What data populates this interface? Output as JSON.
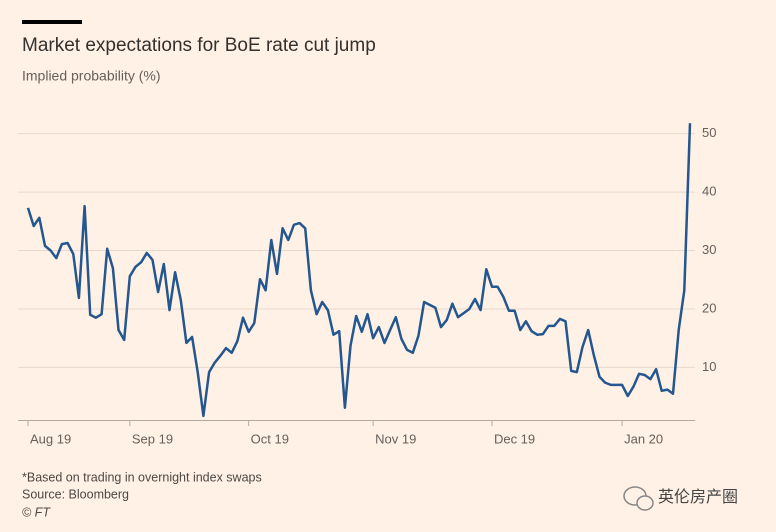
{
  "chart_data": {
    "type": "line",
    "title": "Market expectations for BoE rate cut jump",
    "subtitle": "Implied probability (%)",
    "notes": [
      "*Based on trading in overnight index swaps",
      "Source: Bloomberg",
      "© FT"
    ],
    "watermark": "英伦房产圈",
    "series": [
      {
        "name": "Implied probability",
        "color": "#24568f",
        "values": [
          37.3,
          34.2,
          35.6,
          30.8,
          30,
          28.7,
          31.1,
          31.3,
          29.4,
          21.9,
          37.6,
          19,
          18.5,
          19.1,
          30.3,
          27,
          16.4,
          14.7,
          25.6,
          27.2,
          28,
          29.6,
          28.4,
          22.9,
          27.7,
          19.8,
          26.3,
          21.5,
          14.2,
          15.2,
          9.2,
          1.7,
          9.2,
          10.8,
          12,
          13.3,
          12.5,
          14.5,
          18.5,
          16.1,
          17.6,
          25.1,
          23.2,
          31.8,
          26,
          33.8,
          31.8,
          34.4,
          34.7,
          33.8,
          23.2,
          19.1,
          21.2,
          19.8,
          15.6,
          16.2,
          3.1,
          13.7,
          18.8,
          16.1,
          19.1,
          15,
          16.9,
          14.2,
          16.4,
          18.6,
          14.9,
          13,
          12.5,
          15.4,
          21.2,
          20.7,
          20.2,
          16.9,
          18.1,
          20.9,
          18.6,
          19.3,
          20,
          21.7,
          19.8,
          26.8,
          23.8,
          23.8,
          22.1,
          19.7,
          19.7,
          16.4,
          17.9,
          16.2,
          15.6,
          15.7,
          17.1,
          17.1,
          18.3,
          17.9,
          9.4,
          9.2,
          13.5,
          16.4,
          12.1,
          8.4,
          7.4,
          7,
          7,
          7,
          5.1,
          6.7,
          8.9,
          8.7,
          8,
          9.7,
          6,
          6.2,
          5.5,
          16.4,
          23.2,
          51.8
        ]
      }
    ],
    "xlim": [
      0,
      117
    ],
    "xticks": [
      {
        "value": 0,
        "label": "Aug 19"
      },
      {
        "value": 18,
        "label": "Sep 19"
      },
      {
        "value": 39,
        "label": "Oct 19"
      },
      {
        "value": 61,
        "label": "Nov 19"
      },
      {
        "value": 82,
        "label": "Dec 19"
      },
      {
        "value": 105,
        "label": "Jan 20"
      }
    ],
    "ylim": [
      1,
      52
    ],
    "yticks": [
      10,
      20,
      30,
      40,
      50
    ],
    "grid": true
  }
}
